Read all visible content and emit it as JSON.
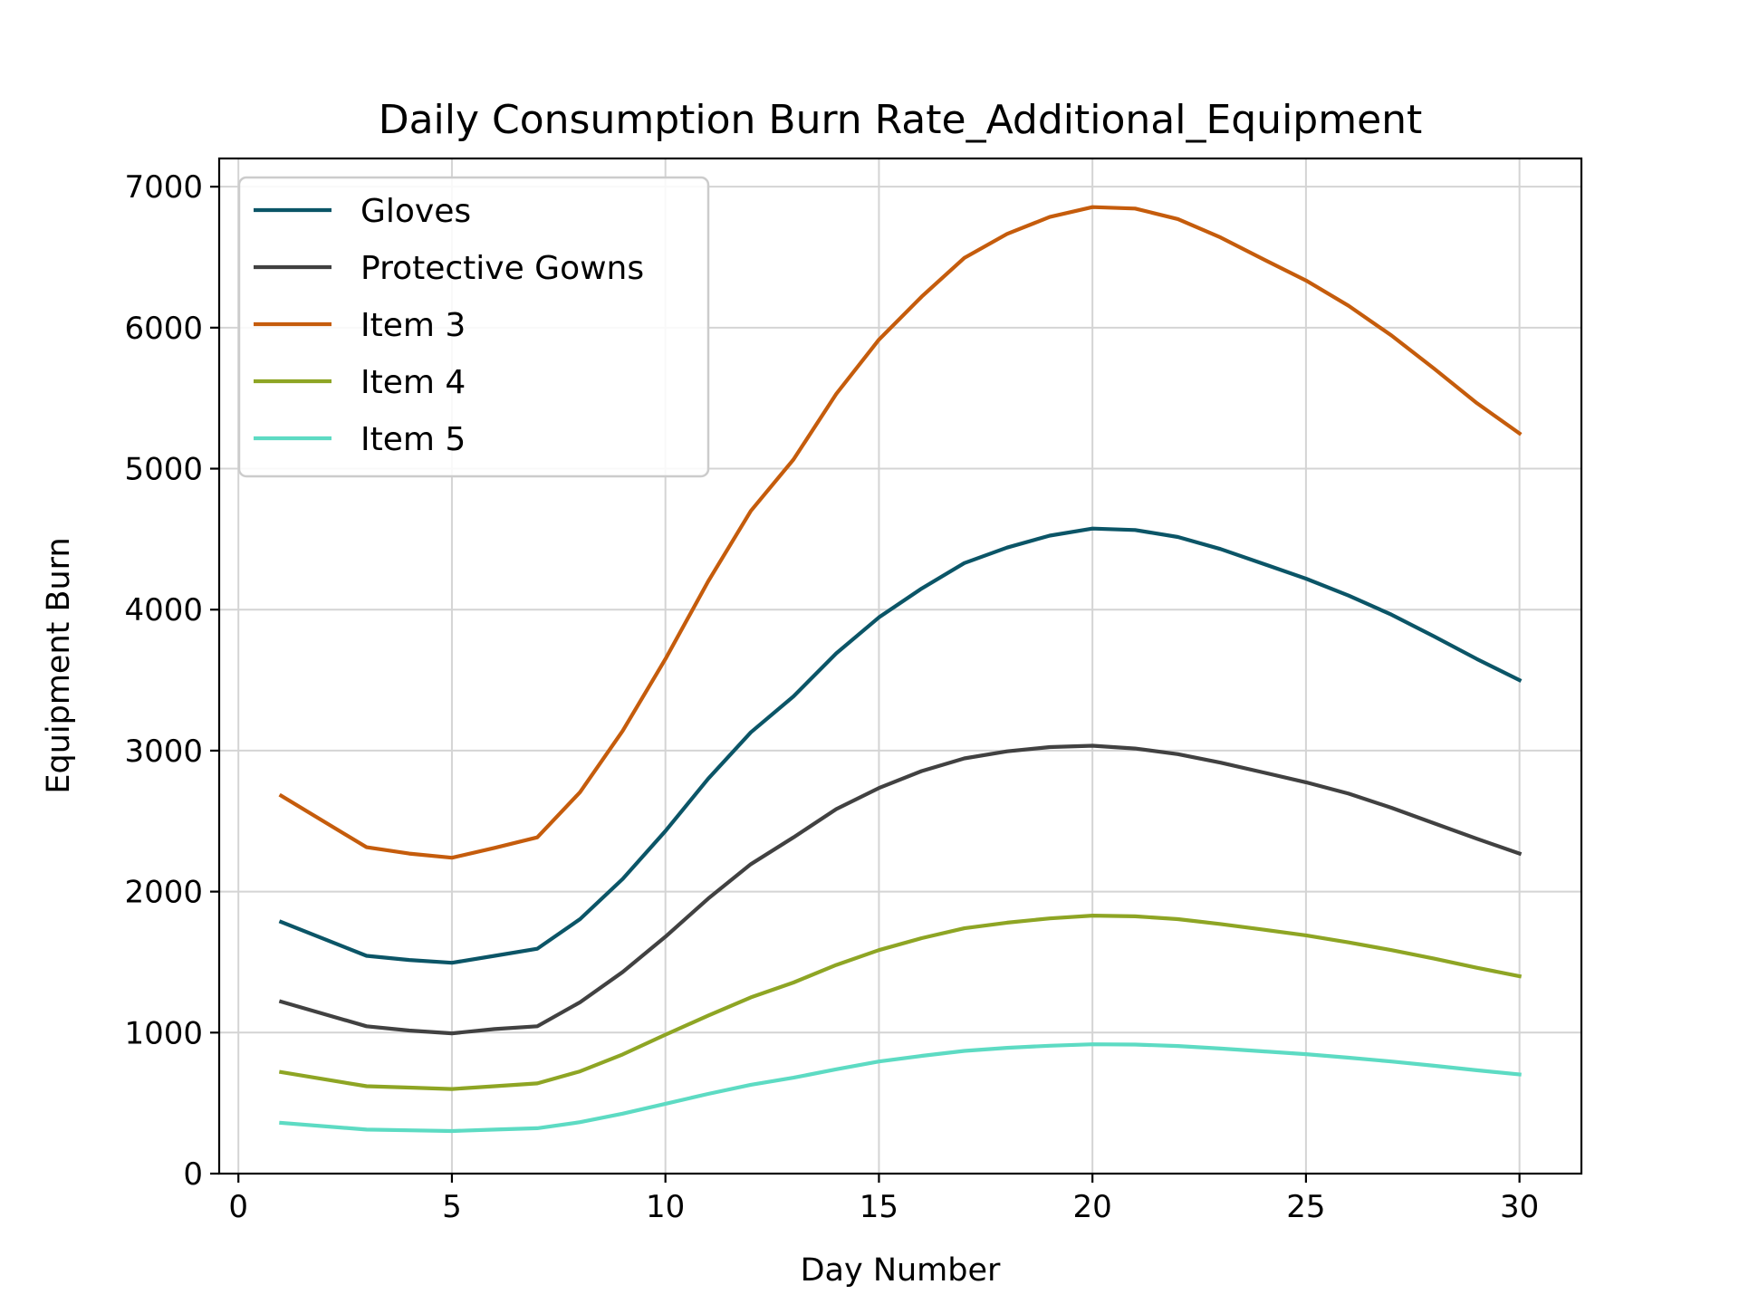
{
  "chart_data": {
    "type": "line",
    "title": "Daily Consumption Burn Rate_Additional_Equipment",
    "xlabel": "Day Number",
    "ylabel": "Equipment Burn",
    "xlim": [
      -0.45,
      31.45
    ],
    "ylim": [
      0,
      7200
    ],
    "xticks": [
      0,
      5,
      10,
      15,
      20,
      25,
      30
    ],
    "yticks": [
      0,
      1000,
      2000,
      3000,
      4000,
      5000,
      6000,
      7000
    ],
    "grid": true,
    "legend_position": "upper-left",
    "x": [
      1,
      3,
      4,
      5,
      6,
      7,
      8,
      9,
      10,
      11,
      12,
      13,
      14,
      15,
      16,
      17,
      18,
      19,
      20,
      21,
      22,
      23,
      24,
      25,
      26,
      27,
      28,
      29,
      30
    ],
    "series": [
      {
        "name": "Gloves",
        "color": "#0b5567",
        "values": [
          1785,
          1545,
          1515,
          1495,
          1545,
          1595,
          1805,
          2090,
          2430,
          2800,
          3130,
          3385,
          3690,
          3945,
          4150,
          4330,
          4440,
          4525,
          4575,
          4565,
          4515,
          4430,
          4325,
          4220,
          4100,
          3965,
          3810,
          3650,
          3500
        ]
      },
      {
        "name": "Protective Gowns",
        "color": "#414141",
        "values": [
          1220,
          1045,
          1015,
          995,
          1025,
          1045,
          1215,
          1430,
          1680,
          1950,
          2195,
          2385,
          2585,
          2735,
          2855,
          2945,
          2995,
          3025,
          3035,
          3015,
          2975,
          2915,
          2845,
          2775,
          2695,
          2595,
          2485,
          2375,
          2270
        ]
      },
      {
        "name": "Item 3",
        "color": "#c55c0c",
        "values": [
          2680,
          2315,
          2270,
          2240,
          2310,
          2385,
          2705,
          3140,
          3650,
          4200,
          4700,
          5065,
          5530,
          5915,
          6220,
          6495,
          6665,
          6785,
          6855,
          6845,
          6770,
          6640,
          6485,
          6335,
          6155,
          5945,
          5710,
          5465,
          5250
        ]
      },
      {
        "name": "Item 4",
        "color": "#8ea524",
        "values": [
          720,
          620,
          610,
          600,
          620,
          640,
          725,
          845,
          985,
          1120,
          1250,
          1355,
          1480,
          1585,
          1670,
          1740,
          1780,
          1810,
          1830,
          1825,
          1805,
          1770,
          1730,
          1690,
          1640,
          1585,
          1525,
          1460,
          1400
        ]
      },
      {
        "name": "Item 5",
        "color": "#5ddbc3",
        "values": [
          360,
          312,
          307,
          302,
          312,
          322,
          365,
          425,
          495,
          565,
          630,
          680,
          740,
          795,
          835,
          870,
          892,
          907,
          917,
          915,
          905,
          887,
          867,
          847,
          822,
          795,
          765,
          733,
          703
        ]
      }
    ]
  }
}
